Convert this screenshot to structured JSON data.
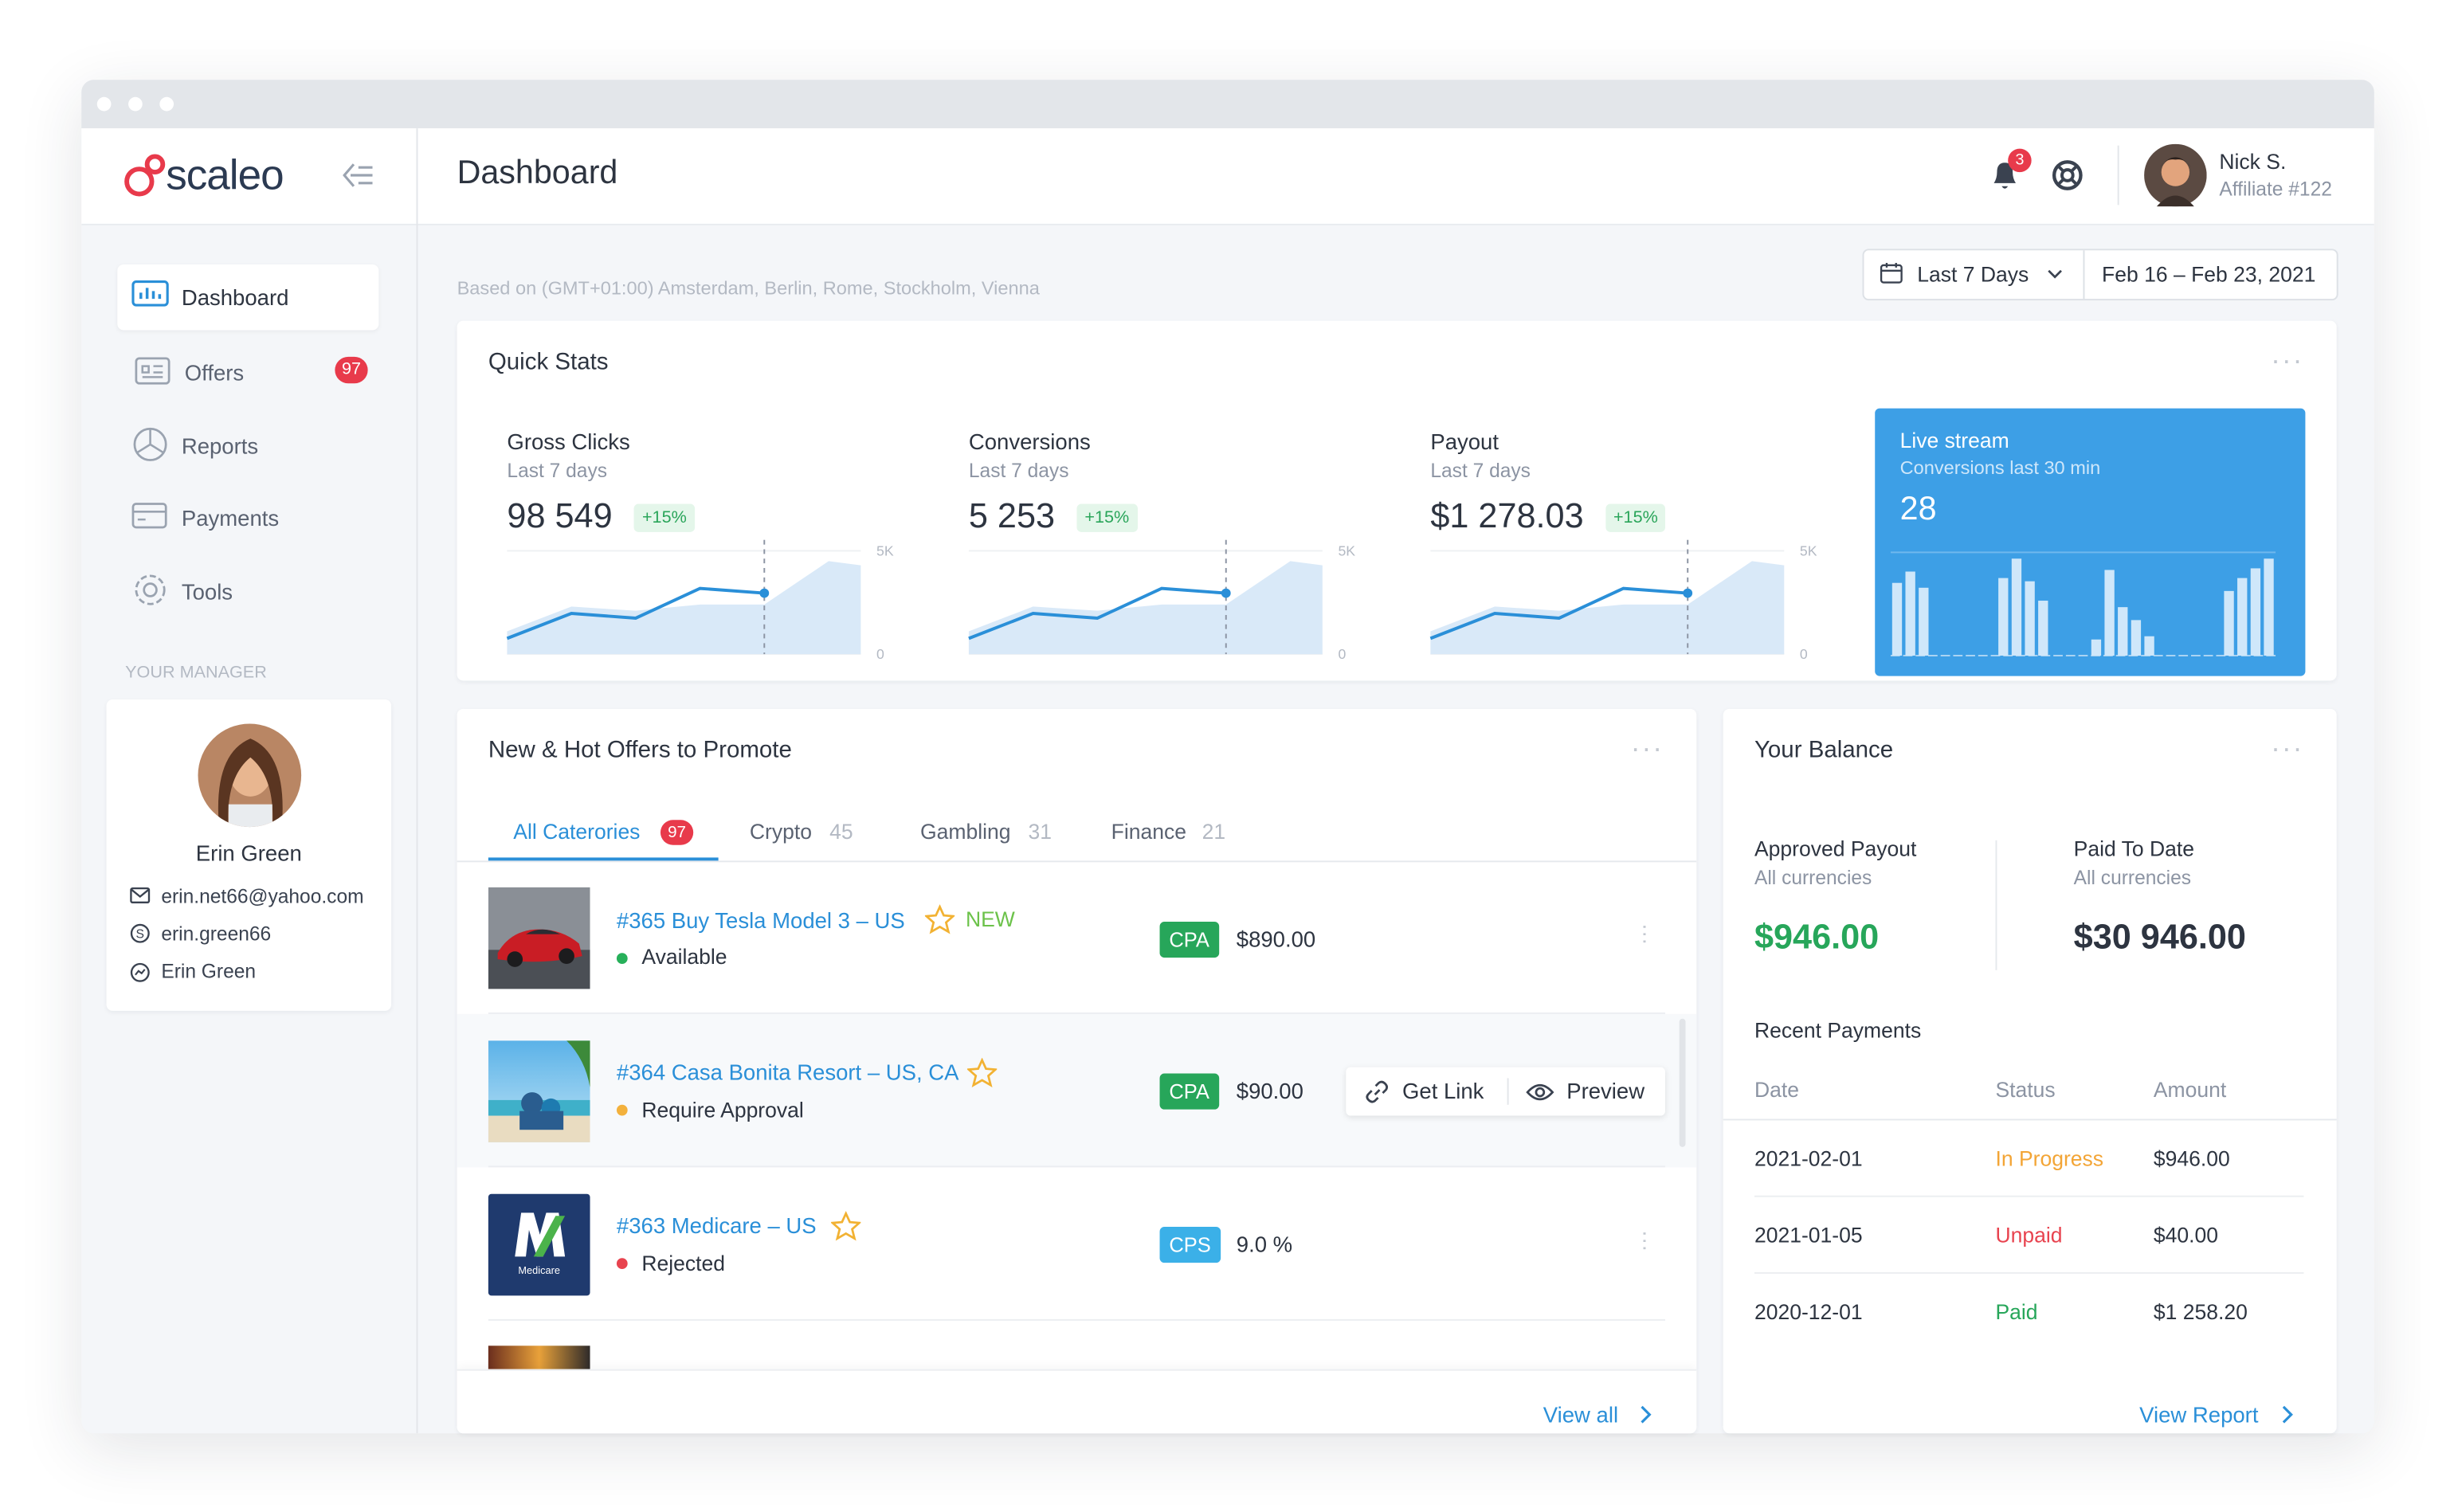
{
  "app": {
    "logo": "scaleo",
    "page_title": "Dashboard",
    "notifications": 3,
    "user": {
      "name": "Nick S.",
      "role": "Affiliate #122"
    }
  },
  "sidebar": {
    "nav": [
      {
        "label": "Dashboard"
      },
      {
        "label": "Offers",
        "badge": 97
      },
      {
        "label": "Reports"
      },
      {
        "label": "Payments"
      },
      {
        "label": "Tools"
      }
    ],
    "manager_heading": "YOUR MANAGER",
    "manager": {
      "name": "Erin Green",
      "email": "erin.net66@yahoo.com",
      "skype": "erin.green66",
      "messenger": "Erin Green"
    }
  },
  "timezone": "Based on (GMT+01:00) Amsterdam, Berlin, Rome, Stockholm, Vienna",
  "date_range": {
    "preset": "Last 7 Days",
    "dates": "Feb 16 – Feb 23, 2021"
  },
  "quick_stats": {
    "title": "Quick Stats",
    "stats": [
      {
        "label": "Gross Clicks",
        "period": "Last 7 days",
        "value": "98 549",
        "change": "+15%",
        "chart": {
          "x": [
            0,
            1,
            2,
            3,
            4,
            5,
            5.5
          ],
          "line": [
            760,
            1970,
            1740,
            3180,
            2950,
            null,
            null
          ],
          "area": [
            1100,
            2300,
            2100,
            2400,
            2400,
            4500,
            4300
          ],
          "marker_x": 4,
          "xlim": [
            0,
            5.5
          ],
          "ylim": [
            0,
            5000
          ],
          "yticks": [
            {
              "value": 5000,
              "label": "5K"
            },
            0
          ]
        }
      },
      {
        "label": "Conversions",
        "period": "Last 7 days",
        "value": "5 253",
        "change": "+15%",
        "chart": {
          "x": [
            0,
            1,
            2,
            3,
            4,
            5,
            5.5
          ],
          "line": [
            760,
            1970,
            1740,
            3180,
            2950,
            null,
            null
          ],
          "area": [
            1100,
            2300,
            2100,
            2400,
            2400,
            4500,
            4300
          ],
          "marker_x": 4,
          "xlim": [
            0,
            5.5
          ],
          "ylim": [
            0,
            5000
          ],
          "yticks": [
            {
              "value": 5000,
              "label": "5K"
            },
            0
          ]
        }
      },
      {
        "label": "Payout",
        "period": "Last 7 days",
        "value": "$1 278.03",
        "change": "+15%",
        "chart": {
          "x": [
            0,
            1,
            2,
            3,
            4,
            5,
            5.5
          ],
          "line": [
            760,
            1970,
            1740,
            3180,
            2950,
            null,
            null
          ],
          "area": [
            1100,
            2300,
            2100,
            2400,
            2400,
            4500,
            4300
          ],
          "marker_x": 4,
          "xlim": [
            0,
            5.5
          ],
          "ylim": [
            0,
            5000
          ],
          "yticks": [
            {
              "value": 5000,
              "label": "5K"
            },
            0
          ]
        }
      }
    ],
    "live": {
      "title": "Live stream",
      "subtitle": "Conversions last 30 min",
      "value": "28",
      "bars": [
        45,
        52,
        42,
        0,
        0,
        0,
        0,
        0,
        48,
        60,
        46,
        34,
        0,
        0,
        0,
        10,
        53,
        30,
        22,
        12,
        0,
        0,
        0,
        0,
        0,
        40,
        48,
        54,
        60
      ],
      "ylim": [
        0,
        60
      ]
    }
  },
  "offers": {
    "title": "New & Hot Offers to Promote",
    "tabs": [
      {
        "label": "All Caterories",
        "count": 97
      },
      {
        "label": "Crypto",
        "count": 45
      },
      {
        "label": "Gambling",
        "count": 31
      },
      {
        "label": "Finance",
        "count": 21
      }
    ],
    "items": [
      {
        "title": "#365  Buy Tesla Model 3 – US",
        "tag": "NEW",
        "status": "Available",
        "model": "CPA",
        "payout": "$890.00"
      },
      {
        "title": "#364 Casa Bonita Resort – US, CA",
        "status": "Require Approval",
        "model": "CPA",
        "payout": "$90.00"
      },
      {
        "title": "#363 Medicare – US",
        "status": "Rejected",
        "model": "CPS",
        "payout": "9.0 %",
        "logo_text": "Medicare"
      }
    ],
    "actions": [
      "Get Link",
      "Preview"
    ],
    "view_all": "View all"
  },
  "balance": {
    "title": "Your Balance",
    "approved": {
      "label": "Approved Payout",
      "sub": "All currencies",
      "value": "$946.00"
    },
    "paid": {
      "label": "Paid To Date",
      "sub": "All currencies",
      "value": "$30 946.00"
    },
    "recent_title": "Recent Payments",
    "columns": [
      "Date",
      "Status",
      "Amount"
    ],
    "rows": [
      [
        "2021-02-01",
        "In Progress",
        "$946.00"
      ],
      [
        "2021-01-05",
        "Unpaid",
        "$40.00"
      ],
      [
        "2020-12-01",
        "Paid",
        "$1 258.20"
      ]
    ],
    "view_report": "View Report"
  }
}
